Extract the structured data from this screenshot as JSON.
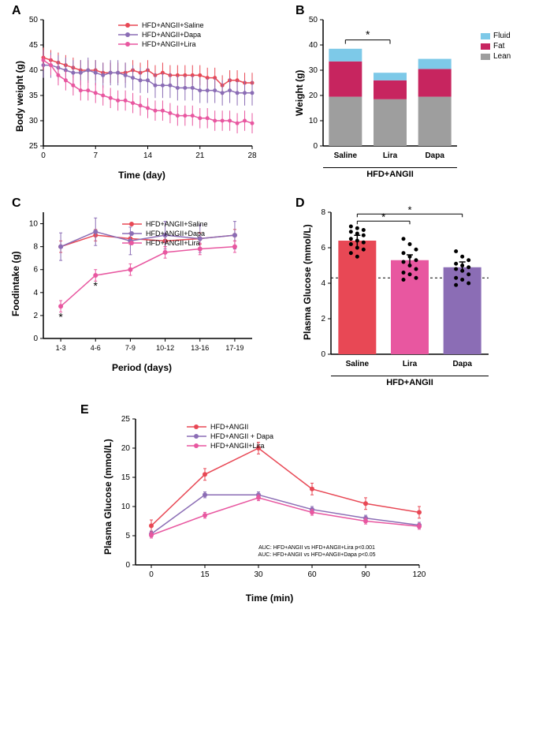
{
  "colors": {
    "saline": "#e84855",
    "dapa": "#8b6db5",
    "lira": "#e857a0",
    "fluid": "#7dc9e8",
    "fat": "#c7255f",
    "lean": "#9e9e9e",
    "axis": "#000000"
  },
  "panelA": {
    "label": "A",
    "type": "line",
    "ylabel": "Body weight (g)",
    "xlabel": "Time (day)",
    "ylim": [
      25,
      50
    ],
    "ytick_step": 5,
    "xlim": [
      0,
      28
    ],
    "xticks": [
      0,
      7,
      14,
      21,
      28
    ],
    "legend": [
      "HFD+ANGII+Saline",
      "HFD+ANGII+Dapa",
      "HFD+ANGII+Lira"
    ],
    "series": {
      "saline": {
        "x": [
          0,
          1,
          2,
          3,
          4,
          5,
          6,
          7,
          8,
          9,
          10,
          11,
          12,
          13,
          14,
          15,
          16,
          17,
          18,
          19,
          20,
          21,
          22,
          23,
          24,
          25,
          26,
          27,
          28
        ],
        "y": [
          42.5,
          42,
          41.5,
          41,
          40.5,
          40,
          40,
          40,
          39.5,
          39.5,
          39.5,
          39.5,
          40,
          39.5,
          40,
          39,
          39.5,
          39,
          39,
          39,
          39,
          39,
          38.5,
          38.5,
          37,
          38,
          38,
          37.5,
          37.5
        ],
        "err": 2
      },
      "dapa": {
        "x": [
          0,
          1,
          2,
          3,
          4,
          5,
          6,
          7,
          8,
          9,
          10,
          11,
          12,
          13,
          14,
          15,
          16,
          17,
          18,
          19,
          20,
          21,
          22,
          23,
          24,
          25,
          26,
          27,
          28
        ],
        "y": [
          41,
          41,
          40.5,
          40,
          39.5,
          39.5,
          40,
          39.5,
          39,
          39.5,
          39.5,
          39,
          38.5,
          38,
          38,
          37,
          37,
          37,
          36.5,
          36.5,
          36.5,
          36,
          36,
          36,
          35.5,
          36,
          35.5,
          35.5,
          35.5
        ],
        "err": 2.5
      },
      "lira": {
        "x": [
          0,
          1,
          2,
          3,
          4,
          5,
          6,
          7,
          8,
          9,
          10,
          11,
          12,
          13,
          14,
          15,
          16,
          17,
          18,
          19,
          20,
          21,
          22,
          23,
          24,
          25,
          26,
          27,
          28
        ],
        "y": [
          42,
          41,
          39,
          38,
          37,
          36,
          36,
          35.5,
          35,
          34.5,
          34,
          34,
          33.5,
          33,
          32.5,
          32,
          32,
          31.5,
          31,
          31,
          31,
          30.5,
          30.5,
          30,
          30,
          30,
          29.5,
          30,
          29.5
        ],
        "err": 2
      }
    }
  },
  "panelB": {
    "label": "B",
    "type": "stacked-bar",
    "ylabel": "Weight (g)",
    "groups": [
      "Saline",
      "Lira",
      "Dapa"
    ],
    "group_label": "HFD+ANGII",
    "ylim": [
      0,
      50
    ],
    "ytick_step": 10,
    "legend": [
      "Fluid",
      "Fat",
      "Lean"
    ],
    "data": {
      "Saline": {
        "lean": 19.5,
        "fat": 14,
        "fluid": 5
      },
      "Lira": {
        "lean": 18.5,
        "fat": 7.5,
        "fluid": 3
      },
      "Dapa": {
        "lean": 19.5,
        "fat": 11,
        "fluid": 4
      }
    },
    "sig": {
      "from": "Saline",
      "to": "Lira",
      "label": "*"
    }
  },
  "panelC": {
    "label": "C",
    "type": "line",
    "ylabel": "Foodintake (g)",
    "xlabel": "Period (days)",
    "ylim": [
      0,
      11
    ],
    "yticks": [
      0,
      2,
      4,
      6,
      8,
      10
    ],
    "categories": [
      "1-3",
      "4-6",
      "7-9",
      "10-12",
      "13-16",
      "17-19"
    ],
    "legend": [
      "HFD+ANGII+Saline",
      "HFD+ANGII+Dapa",
      "HFD+ANGII+Lira"
    ],
    "series": {
      "saline": {
        "y": [
          8,
          9,
          8.7,
          8.5,
          8.7,
          9
        ],
        "err": 0.5
      },
      "dapa": {
        "y": [
          8,
          9.3,
          8.5,
          9,
          8.7,
          9
        ],
        "err": 1.2
      },
      "lira": {
        "y": [
          2.8,
          5.5,
          6,
          7.5,
          7.8,
          8
        ],
        "err": 0.5
      }
    },
    "sig_points": [
      0,
      1
    ]
  },
  "panelD": {
    "label": "D",
    "type": "bar-scatter",
    "ylabel": "Plasma Glucose (mmol/L)",
    "groups": [
      "Saline",
      "Lira",
      "Dapa"
    ],
    "group_label": "HFD+ANGII",
    "ylim": [
      0,
      8
    ],
    "ytick_step": 2,
    "ref_line": 4.3,
    "data": {
      "Saline": {
        "mean": 6.4,
        "err": 0.3,
        "color": "saline",
        "points": [
          7.2,
          7.1,
          7.0,
          6.9,
          6.8,
          6.7,
          6.5,
          6.4,
          6.3,
          6.2,
          6.0,
          5.9,
          5.7,
          5.5
        ]
      },
      "Lira": {
        "mean": 5.3,
        "err": 0.3,
        "color": "lira",
        "points": [
          6.5,
          6.2,
          5.9,
          5.7,
          5.5,
          5.3,
          5.2,
          5.0,
          4.8,
          4.6,
          4.5,
          4.3,
          4.2
        ]
      },
      "Dapa": {
        "mean": 4.9,
        "err": 0.3,
        "color": "dapa",
        "points": [
          5.8,
          5.5,
          5.3,
          5.1,
          5.0,
          4.9,
          4.8,
          4.7,
          4.5,
          4.3,
          4.2,
          4.0,
          3.9
        ]
      }
    },
    "sig": [
      {
        "from": "Saline",
        "to": "Lira",
        "y": 7.5,
        "label": "*"
      },
      {
        "from": "Saline",
        "to": "Dapa",
        "y": 7.9,
        "label": "*"
      }
    ]
  },
  "panelE": {
    "label": "E",
    "type": "line",
    "ylabel": "Plasma Glucose (mmol/L)",
    "xlabel": "Time (min)",
    "ylim": [
      0,
      25
    ],
    "ytick_step": 5,
    "xticks": [
      0,
      15,
      30,
      60,
      90,
      120
    ],
    "legend": [
      "HFD+ANGII",
      "HFD+ANGII + Dapa",
      "HFD+ANGII+Lira"
    ],
    "series": {
      "saline": {
        "y": [
          6.7,
          15.5,
          20,
          13,
          10.5,
          9
        ],
        "err": 1
      },
      "dapa": {
        "y": [
          5.3,
          12,
          12,
          9.5,
          8,
          6.8
        ],
        "err": 0.5
      },
      "lira": {
        "y": [
          5.1,
          8.5,
          11.5,
          9,
          7.5,
          6.6
        ],
        "err": 0.5
      }
    },
    "auc_lines": [
      "AUC: HFD+ANGII vs HFD+ANGII+Lira p<0.001",
      "AUC: HFD+ANGII vs HFD+ANGII+Dapa p<0.05"
    ]
  }
}
